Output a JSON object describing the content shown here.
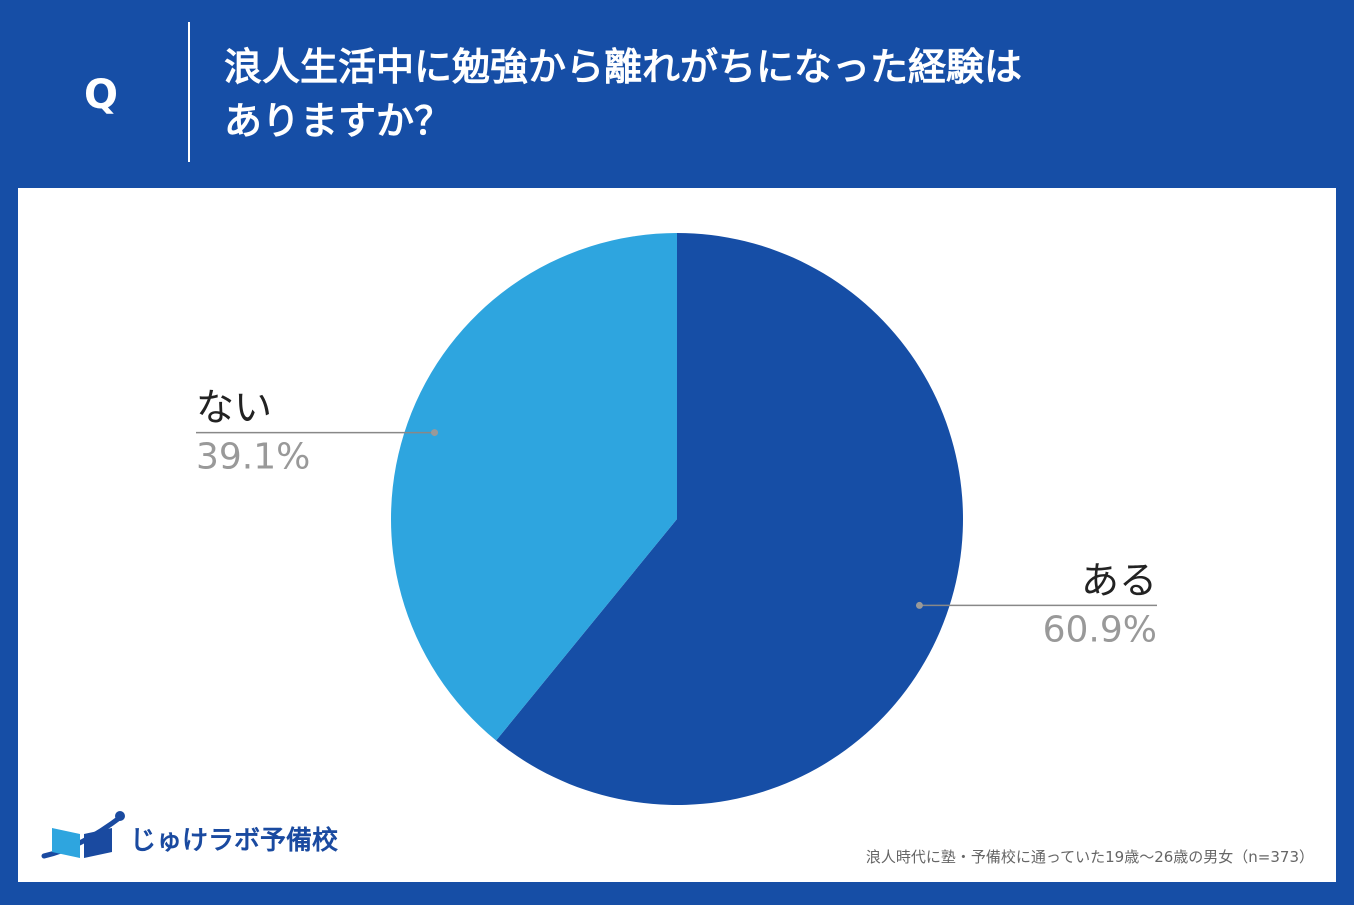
{
  "header": {
    "q_mark": "Q",
    "question_line1": "浪人生活中に勉強から離れがちになった経験は",
    "question_line2": "ありますか？"
  },
  "chart_data": {
    "type": "pie",
    "title": "浪人生活中に勉強から離れがちになった経験はありますか？",
    "slices": [
      {
        "label": "ある",
        "value": 60.9,
        "value_label": "60.9%",
        "color": "#164ea6"
      },
      {
        "label": "ない",
        "value": 39.1,
        "value_label": "39.1%",
        "color": "#2ea5df"
      }
    ],
    "start_angle": "12 o'clock",
    "direction": "clockwise"
  },
  "logo": {
    "text": "じゅけラボ予備校"
  },
  "footnote": "浪人時代に塾・予備校に通っていた19歳～26歳の男女（n=373）",
  "colors": {
    "background": "#164ea6",
    "panel": "#ffffff",
    "primary_slice": "#164ea6",
    "secondary_slice": "#2ea5df",
    "label_text": "#222222",
    "percent_text": "#999999"
  }
}
